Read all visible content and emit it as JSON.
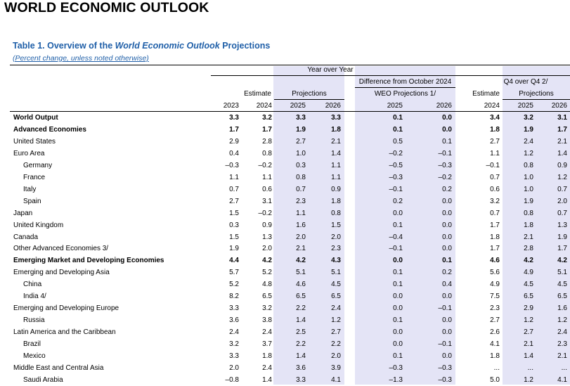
{
  "document": {
    "title": "WORLD ECONOMIC OUTLOOK",
    "table_title_prefix": "Table 1. Overview of the ",
    "table_title_italic": "World Economic Outlook",
    "table_title_suffix": " Projections",
    "subtitle": "(Percent change, unless noted otherwise)"
  },
  "headers": {
    "year_over_year": "Year over Year",
    "difference_line1": "Difference from October 2024",
    "difference_line2": "WEO Projections 1/",
    "q4_over_q4": "Q4 over Q4 2/",
    "estimate": "Estimate",
    "projections": "Projections",
    "estimate_q4": "Estimate",
    "projections_q4": "Projections",
    "years": [
      "2023",
      "2024",
      "2025",
      "2026",
      "2025",
      "2026",
      "2024",
      "2025",
      "2026"
    ]
  },
  "rows": [
    {
      "label": "World Output",
      "bold": true,
      "indent": false,
      "values": [
        "3.3",
        "3.2",
        "3.3",
        "3.3",
        "0.1",
        "0.0",
        "3.4",
        "3.2",
        "3.1"
      ]
    },
    {
      "label": "Advanced Economies",
      "bold": true,
      "indent": false,
      "values": [
        "1.7",
        "1.7",
        "1.9",
        "1.8",
        "0.1",
        "0.0",
        "1.8",
        "1.9",
        "1.7"
      ]
    },
    {
      "label": "United States",
      "bold": false,
      "indent": false,
      "values": [
        "2.9",
        "2.8",
        "2.7",
        "2.1",
        "0.5",
        "0.1",
        "2.7",
        "2.4",
        "2.1"
      ]
    },
    {
      "label": "Euro Area",
      "bold": false,
      "indent": false,
      "values": [
        "0.4",
        "0.8",
        "1.0",
        "1.4",
        "–0.2",
        "–0.1",
        "1.1",
        "1.2",
        "1.4"
      ]
    },
    {
      "label": "Germany",
      "bold": false,
      "indent": true,
      "values": [
        "–0.3",
        "–0.2",
        "0.3",
        "1.1",
        "–0.5",
        "–0.3",
        "–0.1",
        "0.8",
        "0.9"
      ]
    },
    {
      "label": "France",
      "bold": false,
      "indent": true,
      "values": [
        "1.1",
        "1.1",
        "0.8",
        "1.1",
        "–0.3",
        "–0.2",
        "0.7",
        "1.0",
        "1.2"
      ]
    },
    {
      "label": "Italy",
      "bold": false,
      "indent": true,
      "values": [
        "0.7",
        "0.6",
        "0.7",
        "0.9",
        "–0.1",
        "0.2",
        "0.6",
        "1.0",
        "0.7"
      ]
    },
    {
      "label": "Spain",
      "bold": false,
      "indent": true,
      "values": [
        "2.7",
        "3.1",
        "2.3",
        "1.8",
        "0.2",
        "0.0",
        "3.2",
        "1.9",
        "2.0"
      ]
    },
    {
      "label": "Japan",
      "bold": false,
      "indent": false,
      "values": [
        "1.5",
        "–0.2",
        "1.1",
        "0.8",
        "0.0",
        "0.0",
        "0.7",
        "0.8",
        "0.7"
      ]
    },
    {
      "label": "United Kingdom",
      "bold": false,
      "indent": false,
      "values": [
        "0.3",
        "0.9",
        "1.6",
        "1.5",
        "0.1",
        "0.0",
        "1.7",
        "1.8",
        "1.3"
      ]
    },
    {
      "label": "Canada",
      "bold": false,
      "indent": false,
      "values": [
        "1.5",
        "1.3",
        "2.0",
        "2.0",
        "–0.4",
        "0.0",
        "1.8",
        "2.1",
        "1.9"
      ]
    },
    {
      "label": "Other Advanced Economies 3/",
      "bold": false,
      "indent": false,
      "values": [
        "1.9",
        "2.0",
        "2.1",
        "2.3",
        "–0.1",
        "0.0",
        "1.7",
        "2.8",
        "1.7"
      ]
    },
    {
      "label": "Emerging Market and Developing Economies",
      "bold": true,
      "indent": false,
      "values": [
        "4.4",
        "4.2",
        "4.2",
        "4.3",
        "0.0",
        "0.1",
        "4.6",
        "4.2",
        "4.2"
      ]
    },
    {
      "label": "Emerging and Developing Asia",
      "bold": false,
      "indent": false,
      "values": [
        "5.7",
        "5.2",
        "5.1",
        "5.1",
        "0.1",
        "0.2",
        "5.6",
        "4.9",
        "5.1"
      ]
    },
    {
      "label": "China",
      "bold": false,
      "indent": true,
      "values": [
        "5.2",
        "4.8",
        "4.6",
        "4.5",
        "0.1",
        "0.4",
        "4.9",
        "4.5",
        "4.5"
      ]
    },
    {
      "label": "India 4/",
      "bold": false,
      "indent": true,
      "values": [
        "8.2",
        "6.5",
        "6.5",
        "6.5",
        "0.0",
        "0.0",
        "7.5",
        "6.5",
        "6.5"
      ]
    },
    {
      "label": "Emerging and Developing Europe",
      "bold": false,
      "indent": false,
      "values": [
        "3.3",
        "3.2",
        "2.2",
        "2.4",
        "0.0",
        "–0.1",
        "2.3",
        "2.9",
        "1.6"
      ]
    },
    {
      "label": "Russia",
      "bold": false,
      "indent": true,
      "values": [
        "3.6",
        "3.8",
        "1.4",
        "1.2",
        "0.1",
        "0.0",
        "2.7",
        "1.2",
        "1.2"
      ]
    },
    {
      "label": "Latin America and the Caribbean",
      "bold": false,
      "indent": false,
      "values": [
        "2.4",
        "2.4",
        "2.5",
        "2.7",
        "0.0",
        "0.0",
        "2.6",
        "2.7",
        "2.4"
      ]
    },
    {
      "label": "Brazil",
      "bold": false,
      "indent": true,
      "values": [
        "3.2",
        "3.7",
        "2.2",
        "2.2",
        "0.0",
        "–0.1",
        "4.1",
        "2.1",
        "2.3"
      ]
    },
    {
      "label": "Mexico",
      "bold": false,
      "indent": true,
      "values": [
        "3.3",
        "1.8",
        "1.4",
        "2.0",
        "0.1",
        "0.0",
        "1.8",
        "1.4",
        "2.1"
      ]
    },
    {
      "label": "Middle East and Central Asia",
      "bold": false,
      "indent": false,
      "values": [
        "2.0",
        "2.4",
        "3.6",
        "3.9",
        "–0.3",
        "–0.3",
        "...",
        "...",
        "..."
      ]
    },
    {
      "label": "Saudi Arabia",
      "bold": false,
      "indent": true,
      "values": [
        "–0.8",
        "1.4",
        "3.3",
        "4.1",
        "–1.3",
        "–0.3",
        "5.0",
        "1.2",
        "4.1"
      ]
    }
  ]
}
